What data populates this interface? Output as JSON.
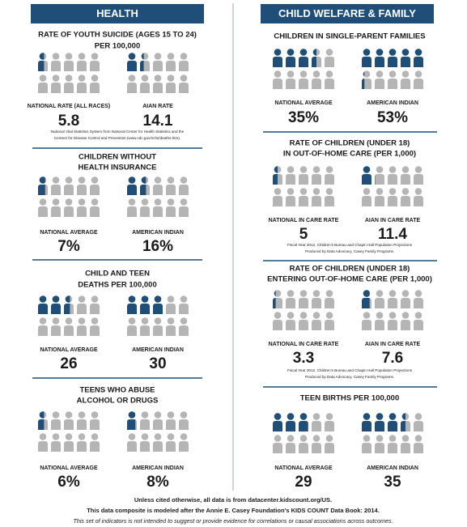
{
  "health": {
    "title": "HEALTH",
    "sections": [
      {
        "title": [
          "RATE OF YOUTH SUICIDE (AGES 15 TO 24)",
          "PER 100,000"
        ],
        "groups": [
          {
            "label": "NATIONAL RATE (ALL RACES)",
            "value": "5.8"
          },
          {
            "label": "AIAN RATE",
            "value": "14.1"
          }
        ],
        "source": [
          "National Vital Statistics System from National Center for Health Statistics and the",
          "Centers for Disease Control and Prevention (www.cdc.gov/nchs/deaths.htm)."
        ]
      },
      {
        "title": [
          "CHILDREN WITHOUT",
          "HEALTH INSURANCE"
        ],
        "groups": [
          {
            "label": "NATIONAL AVERAGE",
            "value": "7%"
          },
          {
            "label": "AMERICAN INDIAN",
            "value": "16%"
          }
        ]
      },
      {
        "title": [
          "CHILD AND TEEN",
          "DEATHS PER 100,000"
        ],
        "groups": [
          {
            "label": "NATIONAL AVERAGE",
            "value": "26"
          },
          {
            "label": "AMERICAN INDIAN",
            "value": "30"
          }
        ]
      },
      {
        "title": [
          "TEENS WHO ABUSE",
          "ALCOHOL OR DRUGS"
        ],
        "groups": [
          {
            "label": "NATIONAL AVERAGE",
            "value": "6%"
          },
          {
            "label": "AMERICAN INDIAN",
            "value": "8%"
          }
        ]
      }
    ]
  },
  "welfare": {
    "title": "CHILD WELFARE & FAMILY",
    "sections": [
      {
        "title": [
          "CHILDREN IN SINGLE-PARENT FAMILIES"
        ],
        "groups": [
          {
            "label": "NATIONAL AVERAGE",
            "value": "35%"
          },
          {
            "label": "AMERICAN INDIAN",
            "value": "53%"
          }
        ]
      },
      {
        "title": [
          "RATE OF CHILDREN (UNDER 18)",
          "IN OUT-OF-HOME CARE (PER 1,000)"
        ],
        "groups": [
          {
            "label": "NATIONAL IN CARE RATE",
            "value": "5"
          },
          {
            "label": "AIAN IN CARE RATE",
            "value": "11.4"
          }
        ],
        "source": [
          "Fiscal Year 2012, Children's Bureau and Chapin Hall Population Projections",
          "Produced by Data Advocacy, Casey Family Programs."
        ]
      },
      {
        "title": [
          "RATE OF CHILDREN (UNDER 18)",
          "ENTERING OUT-OF-HOME CARE (PER 1,000)"
        ],
        "groups": [
          {
            "label": "NATIONAL IN CARE RATE",
            "value": "3.3"
          },
          {
            "label": "AIAN IN CARE RATE",
            "value": "7.6"
          }
        ],
        "source": [
          "Fiscal Year 2012, Children's Bureau and Chapin Hall Population Projections",
          "Produced by Data Advocacy, Casey Family Programs."
        ]
      },
      {
        "title": [
          "TEEN BIRTHS PER 100,000"
        ],
        "groups": [
          {
            "label": "NATIONAL AVERAGE",
            "value": "29"
          },
          {
            "label": "AMERICAN INDIAN",
            "value": "35"
          }
        ]
      }
    ]
  },
  "footer": [
    "Unless cited otherwise, all data is from datacenter.kidscount.org/US.",
    "This data composite is modeled after the Annie E. Casey Foundation's KIDS COUNT Data Book: 2014.",
    "This set of indicators is not intended to suggest or provide evidence for correlations or causal associations across outcomes."
  ]
}
